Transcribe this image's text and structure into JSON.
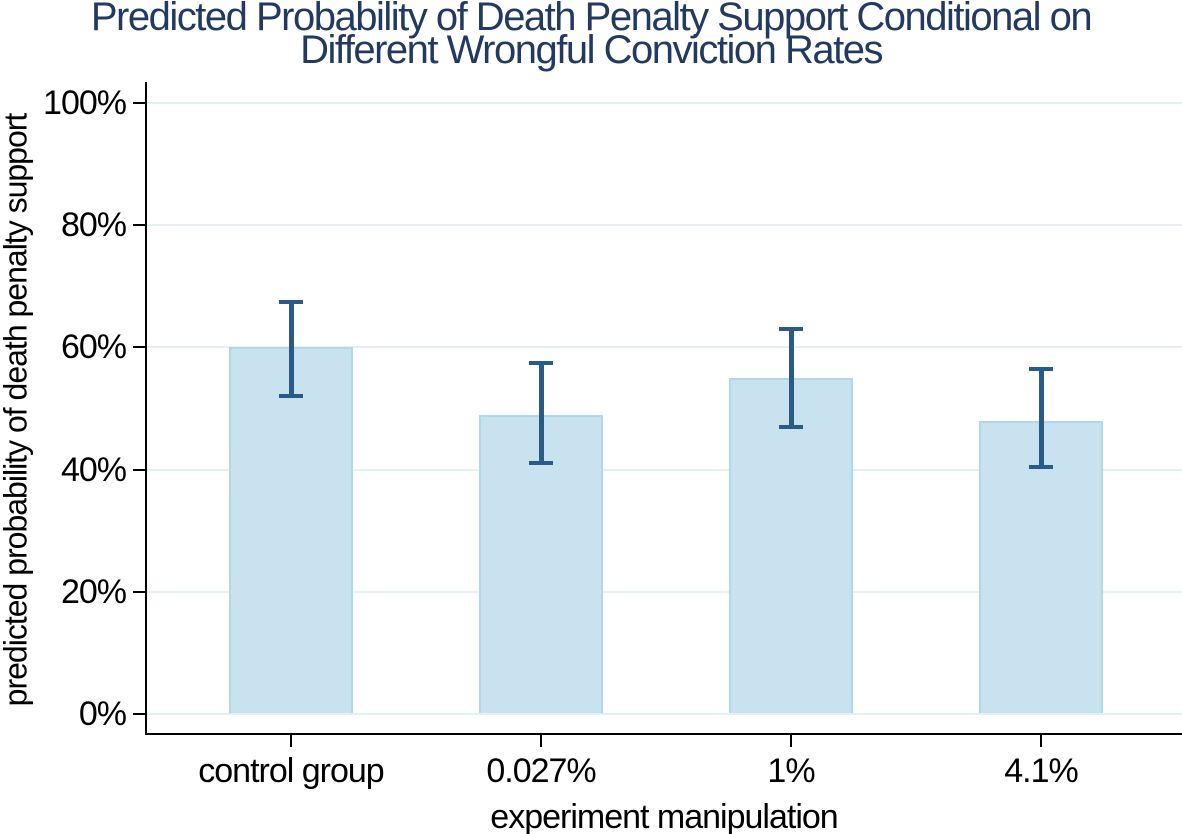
{
  "chart_data": {
    "type": "bar",
    "title": "Predicted Probability of Death Penalty Support Conditional on Different Wrongful Conviction Rates",
    "title_lines": [
      "Predicted Probability of Death Penalty Support Conditional on",
      "Different Wrongful Conviction Rates"
    ],
    "xlabel": "experiment manipulation",
    "ylabel": "predicted probability of death penalty support",
    "categories": [
      "control group",
      "0.027%",
      "1%",
      "4.1%"
    ],
    "values": [
      60,
      49,
      55,
      48
    ],
    "error_bars": [
      {
        "low": 52,
        "high": 67.5
      },
      {
        "low": 41,
        "high": 57.5
      },
      {
        "low": 47,
        "high": 63
      },
      {
        "low": 40.5,
        "high": 56.5
      }
    ],
    "ylim": [
      0,
      100
    ],
    "y_ticks": [
      {
        "value": 0,
        "label": "0%"
      },
      {
        "value": 20,
        "label": "20%"
      },
      {
        "value": 40,
        "label": "40%"
      },
      {
        "value": 60,
        "label": "60%"
      },
      {
        "value": 80,
        "label": "80%"
      },
      {
        "value": 100,
        "label": "100%"
      }
    ],
    "grid": true,
    "legend_position": "none",
    "colors": {
      "background": "#ffffff",
      "title": "#233a60",
      "text": "#000000",
      "axis": "#000000",
      "gridline": "#e4f1f2",
      "bar_fill": "#c8e3ef",
      "bar_border": "#b2d7e6",
      "error_bar": "#2a5a87"
    }
  }
}
